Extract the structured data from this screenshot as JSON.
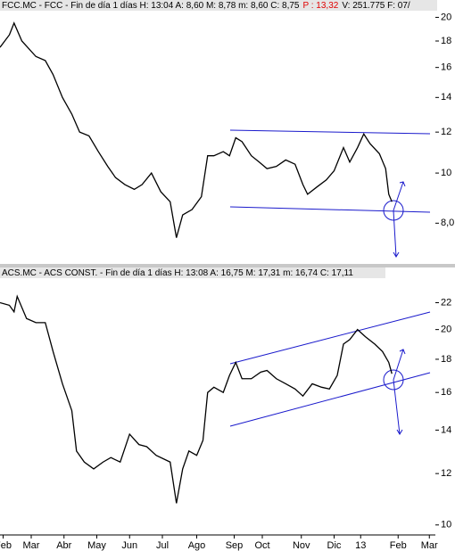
{
  "chart_data": [
    {
      "type": "line",
      "header": [
        {
          "text": "FCC.MC - FCC - Fin de día 1 días H: 13:04 A: 8,60 M: 8,78 m: 8,60 C: 8,75",
          "color": "#000000"
        },
        {
          "text": "P : 13,32",
          "color": "#e00000"
        },
        {
          "text": "V: 251.775 F: 07/",
          "color": "#000000"
        }
      ],
      "log": true,
      "xlim": [
        0,
        290
      ],
      "ylim": [
        6.7,
        20.6
      ],
      "yticks": [
        20,
        18,
        16,
        14,
        12,
        10,
        {
          "value": 8,
          "label": "8,0"
        }
      ],
      "x": [
        0,
        6,
        9,
        14,
        23,
        29,
        34,
        40,
        46,
        51,
        57,
        63,
        69,
        74,
        80,
        86,
        91,
        97,
        103,
        109,
        113,
        117,
        123,
        129,
        133,
        137,
        143,
        147,
        151,
        155,
        161,
        166,
        171,
        177,
        183,
        189,
        194,
        197,
        203,
        209,
        214,
        220,
        224,
        229,
        233,
        237,
        243,
        247,
        249,
        251
      ],
      "series": [
        {
          "color": "#000000",
          "values": [
            17.5,
            18.5,
            19.5,
            18,
            16.8,
            16.5,
            15.5,
            14,
            13,
            12,
            11.8,
            11,
            10.3,
            9.8,
            9.5,
            9.3,
            9.5,
            10,
            9.2,
            8.8,
            7.5,
            8.3,
            8.5,
            9,
            10.8,
            10.8,
            11,
            10.8,
            11.7,
            11.5,
            10.8,
            10.5,
            10.2,
            10.3,
            10.6,
            10.4,
            9.5,
            9.1,
            9.4,
            9.7,
            10.1,
            11.2,
            10.5,
            11.2,
            11.9,
            11.4,
            10.9,
            10.2,
            9.1,
            8.8
          ]
        }
      ]
    },
    {
      "type": "line",
      "header": [
        {
          "text": "ACS.MC - ACS CONST. - Fin de día 1 días H: 13:08 A: 16,75 M: 17,31 m: 16,74 C: 17,11",
          "color": "#000000"
        }
      ],
      "log": true,
      "xlim": [
        0,
        290
      ],
      "ylim": [
        9.5,
        24
      ],
      "yticks": [
        22,
        20,
        18,
        16,
        14,
        12,
        10
      ],
      "xticks": [
        {
          "value": 2,
          "label": "Feb"
        },
        {
          "value": 20,
          "label": "Mar"
        },
        {
          "value": 41,
          "label": "Abr"
        },
        {
          "value": 62,
          "label": "May"
        },
        {
          "value": 83,
          "label": "Jun"
        },
        {
          "value": 104,
          "label": "Jul"
        },
        {
          "value": 126,
          "label": "Ago"
        },
        {
          "value": 150,
          "label": "Sep"
        },
        {
          "value": 168,
          "label": "Oct"
        },
        {
          "value": 193,
          "label": "Nov"
        },
        {
          "value": 214,
          "label": "Dic"
        },
        {
          "value": 231,
          "label": "13"
        },
        {
          "value": 255,
          "label": "Feb"
        },
        {
          "value": 275,
          "label": "Mar"
        }
      ],
      "x": [
        0,
        6,
        9,
        11,
        17,
        23,
        29,
        34,
        40,
        46,
        49,
        54,
        60,
        66,
        71,
        77,
        83,
        89,
        94,
        100,
        109,
        113,
        117,
        121,
        126,
        130,
        133,
        137,
        143,
        147,
        151,
        155,
        161,
        167,
        171,
        177,
        183,
        189,
        194,
        200,
        206,
        211,
        216,
        220,
        224,
        229,
        234,
        240,
        245,
        249,
        251
      ],
      "series": [
        {
          "color": "#000000",
          "values": [
            22,
            21.8,
            21.3,
            22.5,
            20.8,
            20.5,
            20.5,
            18.5,
            16.5,
            15,
            13,
            12.5,
            12.2,
            12.5,
            12.7,
            12.5,
            13.8,
            13.3,
            13.2,
            12.8,
            12.5,
            10.8,
            12.2,
            13,
            12.8,
            13.5,
            16,
            16.3,
            16,
            17,
            17.8,
            16.8,
            16.8,
            17.2,
            17.3,
            16.8,
            16.5,
            16.2,
            15.8,
            16.5,
            16.3,
            16.2,
            17,
            19,
            19.3,
            20,
            19.5,
            19,
            18.5,
            17.8,
            17.1
          ]
        }
      ]
    }
  ]
}
